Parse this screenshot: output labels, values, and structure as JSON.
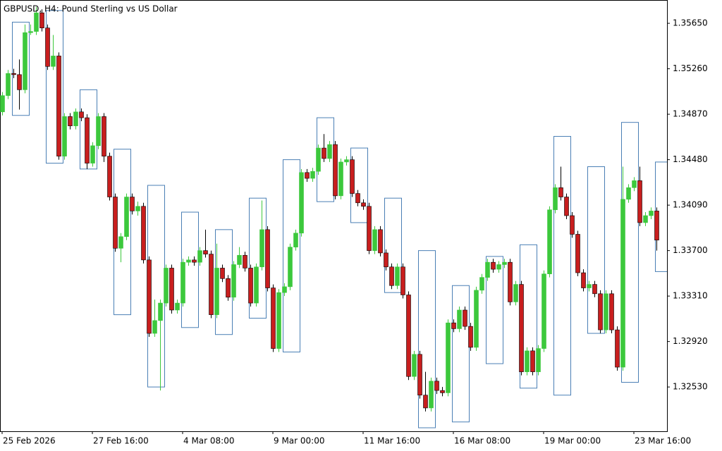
{
  "chart_data": {
    "type": "candlestick",
    "title": "GBPUSD, H4:  Pound Sterling vs US Dollar",
    "categories": [
      "25 Feb 2026",
      null,
      null,
      null,
      null,
      null,
      null,
      null,
      null,
      null,
      null,
      null,
      null,
      null,
      null,
      null,
      "27 Feb 16:00",
      null,
      null,
      null,
      null,
      null,
      null,
      null,
      null,
      null,
      null,
      null,
      null,
      null,
      null,
      null,
      "4 Mar 08:00",
      null,
      null,
      null,
      null,
      null,
      null,
      null,
      null,
      null,
      null,
      null,
      null,
      null,
      null,
      null,
      "9 Mar 00:00",
      null,
      null,
      null,
      null,
      null,
      null,
      null,
      null,
      null,
      null,
      null,
      null,
      null,
      null,
      null,
      "11 Mar 16:00",
      null,
      null,
      null,
      null,
      null,
      null,
      null,
      null,
      null,
      null,
      null,
      null,
      null,
      null,
      null,
      "16 Mar 08:00",
      null,
      null,
      null,
      null,
      null,
      null,
      null,
      null,
      null,
      null,
      null,
      null,
      null,
      null,
      null,
      "19 Mar 00:00",
      null,
      null,
      null,
      null,
      null,
      null,
      null,
      null,
      null,
      null,
      null,
      null,
      null,
      null,
      null,
      "23 Mar 16:00",
      null,
      null,
      null,
      null
    ],
    "open": [
      1.3489,
      1.3503,
      1.3522,
      1.3521,
      1.3508,
      1.3557,
      1.3558,
      1.3574,
      1.3561,
      1.3528,
      1.3537,
      1.3451,
      1.3485,
      1.3477,
      1.3489,
      1.3484,
      1.3445,
      1.346,
      1.3485,
      1.3451,
      1.3416,
      1.3372,
      1.3382,
      1.3416,
      1.3404,
      1.3408,
      1.3362,
      1.3299,
      1.331,
      1.3325,
      1.3355,
      1.3319,
      1.3325,
      1.336,
      1.3362,
      1.336,
      1.337,
      1.3367,
      1.3315,
      1.3355,
      1.3346,
      1.333,
      1.3358,
      1.3366,
      1.3355,
      1.3325,
      1.3356,
      1.3388,
      1.3338,
      1.3286,
      1.3334,
      1.3339,
      1.3373,
      1.3385,
      1.3437,
      1.3432,
      1.3438,
      1.3458,
      1.3449,
      1.3461,
      1.3417,
      1.3446,
      1.3448,
      1.3419,
      1.3411,
      1.3408,
      1.337,
      1.3388,
      1.3368,
      1.3356,
      1.334,
      1.3356,
      1.3332,
      1.3262,
      1.3281,
      1.3246,
      1.3235,
      1.3258,
      1.325,
      1.3248,
      1.3308,
      1.3303,
      1.3319,
      1.3305,
      1.3287,
      1.3336,
      1.3347,
      1.336,
      1.3354,
      1.3358,
      1.336,
      1.3326,
      1.3341,
      1.3266,
      1.3284,
      1.3266,
      1.3286,
      1.335,
      1.3405,
      1.3424,
      1.3416,
      1.34,
      1.3384,
      1.3351,
      1.3338,
      1.3341,
      1.3333,
      1.3302,
      1.3333,
      1.3302,
      1.327,
      1.3414,
      1.3424,
      1.343,
      1.3394,
      1.34,
      1.3404
    ],
    "high": [
      1.3506,
      1.3525,
      1.3526,
      1.3534,
      1.3564,
      1.3564,
      1.3579,
      1.3577,
      1.3564,
      1.3555,
      1.354,
      1.3488,
      1.3488,
      1.3492,
      1.3492,
      1.3487,
      1.3463,
      1.3488,
      1.3488,
      1.3454,
      1.3419,
      1.3385,
      1.3419,
      1.3419,
      1.3412,
      1.3411,
      1.3365,
      1.3328,
      1.3328,
      1.3358,
      1.3358,
      1.3328,
      1.3363,
      1.3365,
      1.3365,
      1.3373,
      1.3388,
      1.337,
      1.3376,
      1.3358,
      1.3349,
      1.3361,
      1.3373,
      1.3369,
      1.3358,
      1.3359,
      1.3413,
      1.3391,
      1.3341,
      1.3337,
      1.3342,
      1.3376,
      1.3388,
      1.344,
      1.344,
      1.3441,
      1.3461,
      1.347,
      1.3464,
      1.3464,
      1.3449,
      1.3451,
      1.3451,
      1.3422,
      1.3414,
      1.3411,
      1.3391,
      1.3391,
      1.3371,
      1.3359,
      1.3359,
      1.3359,
      1.3335,
      1.3284,
      1.3284,
      1.3266,
      1.3261,
      1.3261,
      1.3253,
      1.3311,
      1.3311,
      1.3322,
      1.3322,
      1.3308,
      1.3339,
      1.335,
      1.3363,
      1.3363,
      1.3361,
      1.3363,
      1.3363,
      1.3344,
      1.3344,
      1.3287,
      1.3287,
      1.3289,
      1.3353,
      1.3408,
      1.3427,
      1.3442,
      1.3419,
      1.3403,
      1.3387,
      1.3354,
      1.3344,
      1.3344,
      1.3336,
      1.3336,
      1.3336,
      1.3305,
      1.3442,
      1.3427,
      1.3433,
      1.3442,
      1.3403,
      1.3407,
      1.3407
    ],
    "low": [
      1.3486,
      1.35,
      1.3518,
      1.3491,
      1.3505,
      1.3555,
      1.3555,
      1.3558,
      1.3525,
      1.3525,
      1.3448,
      1.3448,
      1.3474,
      1.3474,
      1.3481,
      1.344,
      1.3442,
      1.3457,
      1.3446,
      1.3413,
      1.3369,
      1.336,
      1.3379,
      1.3401,
      1.34,
      1.3359,
      1.3296,
      1.3296,
      1.325,
      1.3322,
      1.3316,
      1.3316,
      1.3322,
      1.3357,
      1.3357,
      1.3357,
      1.3364,
      1.3312,
      1.3312,
      1.3343,
      1.3327,
      1.3327,
      1.3355,
      1.3352,
      1.3322,
      1.3322,
      1.3353,
      1.3335,
      1.3283,
      1.3283,
      1.3331,
      1.3336,
      1.337,
      1.3382,
      1.3429,
      1.3429,
      1.3435,
      1.3446,
      1.3446,
      1.3414,
      1.3414,
      1.3443,
      1.3416,
      1.3408,
      1.3405,
      1.3367,
      1.3367,
      1.3365,
      1.3353,
      1.3337,
      1.3337,
      1.3329,
      1.3259,
      1.3259,
      1.3243,
      1.3232,
      1.3232,
      1.3247,
      1.3245,
      1.3245,
      1.33,
      1.33,
      1.3302,
      1.3284,
      1.3284,
      1.3333,
      1.3344,
      1.3351,
      1.3351,
      1.3355,
      1.3323,
      1.3323,
      1.3263,
      1.3263,
      1.3263,
      1.3263,
      1.3283,
      1.3347,
      1.3402,
      1.3413,
      1.3397,
      1.3381,
      1.3348,
      1.3335,
      1.3335,
      1.333,
      1.3299,
      1.3299,
      1.3299,
      1.3267,
      1.3267,
      1.3411,
      1.3421,
      1.3391,
      1.3391,
      1.3397,
      1.337
    ],
    "close": [
      1.3503,
      1.3522,
      1.3521,
      1.3508,
      1.3557,
      1.3558,
      1.3574,
      1.3561,
      1.3528,
      1.3537,
      1.3451,
      1.3485,
      1.3477,
      1.3489,
      1.3484,
      1.3445,
      1.346,
      1.3485,
      1.3451,
      1.3416,
      1.3372,
      1.3382,
      1.3416,
      1.3404,
      1.3408,
      1.3362,
      1.3299,
      1.331,
      1.3325,
      1.3355,
      1.3319,
      1.3325,
      1.336,
      1.3362,
      1.336,
      1.337,
      1.3367,
      1.3315,
      1.3355,
      1.3346,
      1.333,
      1.3358,
      1.3366,
      1.3355,
      1.3325,
      1.3356,
      1.3388,
      1.3338,
      1.3286,
      1.3334,
      1.3339,
      1.3373,
      1.3385,
      1.3437,
      1.3432,
      1.3438,
      1.3458,
      1.3449,
      1.3461,
      1.3417,
      1.3446,
      1.3448,
      1.3419,
      1.3411,
      1.3408,
      1.337,
      1.3388,
      1.3368,
      1.3356,
      1.334,
      1.3356,
      1.3332,
      1.3262,
      1.3281,
      1.3246,
      1.3235,
      1.3258,
      1.325,
      1.3248,
      1.3308,
      1.3303,
      1.3319,
      1.3305,
      1.3287,
      1.3336,
      1.3347,
      1.336,
      1.3354,
      1.3358,
      1.336,
      1.3326,
      1.3341,
      1.3266,
      1.3284,
      1.3266,
      1.3286,
      1.335,
      1.3405,
      1.3424,
      1.3416,
      1.34,
      1.3384,
      1.3351,
      1.3338,
      1.3341,
      1.3333,
      1.3302,
      1.3333,
      1.3302,
      1.327,
      1.3414,
      1.3424,
      1.343,
      1.3394,
      1.34,
      1.3404,
      1.3379
    ],
    "boxes": [
      {
        "high": 1.3566,
        "low": 1.3486
      },
      {
        "high": 1.3576,
        "low": 1.3445
      },
      {
        "high": 1.3508,
        "low": 1.344
      },
      {
        "high": 1.3457,
        "low": 1.3315
      },
      {
        "high": 1.3426,
        "low": 1.3253
      },
      {
        "high": 1.3403,
        "low": 1.3304
      },
      {
        "high": 1.3388,
        "low": 1.3298
      },
      {
        "high": 1.3415,
        "low": 1.3312
      },
      {
        "high": 1.3448,
        "low": 1.3283
      },
      {
        "high": 1.3484,
        "low": 1.3412
      },
      {
        "high": 1.3458,
        "low": 1.3394
      },
      {
        "high": 1.3415,
        "low": 1.3334
      },
      {
        "high": 1.337,
        "low": 1.3218
      },
      {
        "high": 1.334,
        "low": 1.3223
      },
      {
        "high": 1.3365,
        "low": 1.3273
      },
      {
        "high": 1.3375,
        "low": 1.3252
      },
      {
        "high": 1.3468,
        "low": 1.3246
      },
      {
        "high": 1.3442,
        "low": 1.3299
      },
      {
        "high": 1.348,
        "low": 1.3257
      },
      {
        "high": 1.3446,
        "low": 1.3352
      }
    ],
    "ylim": [
      1.3215,
      1.3585
    ],
    "yticks": [
      {
        "value": 1.3565,
        "label": "1.35650"
      },
      {
        "value": 1.3526,
        "label": "1.35260"
      },
      {
        "value": 1.3487,
        "label": "1.34870"
      },
      {
        "value": 1.3448,
        "label": "1.34480"
      },
      {
        "value": 1.3409,
        "label": "1.34090"
      },
      {
        "value": 1.337,
        "label": "1.33700"
      },
      {
        "value": 1.3331,
        "label": "1.33310"
      },
      {
        "value": 1.3292,
        "label": "1.32920"
      },
      {
        "value": 1.3253,
        "label": "1.32530"
      }
    ],
    "up_color": "#3cc83c",
    "down_color": "#c81e1e",
    "box_color": "#4a7fb5"
  }
}
